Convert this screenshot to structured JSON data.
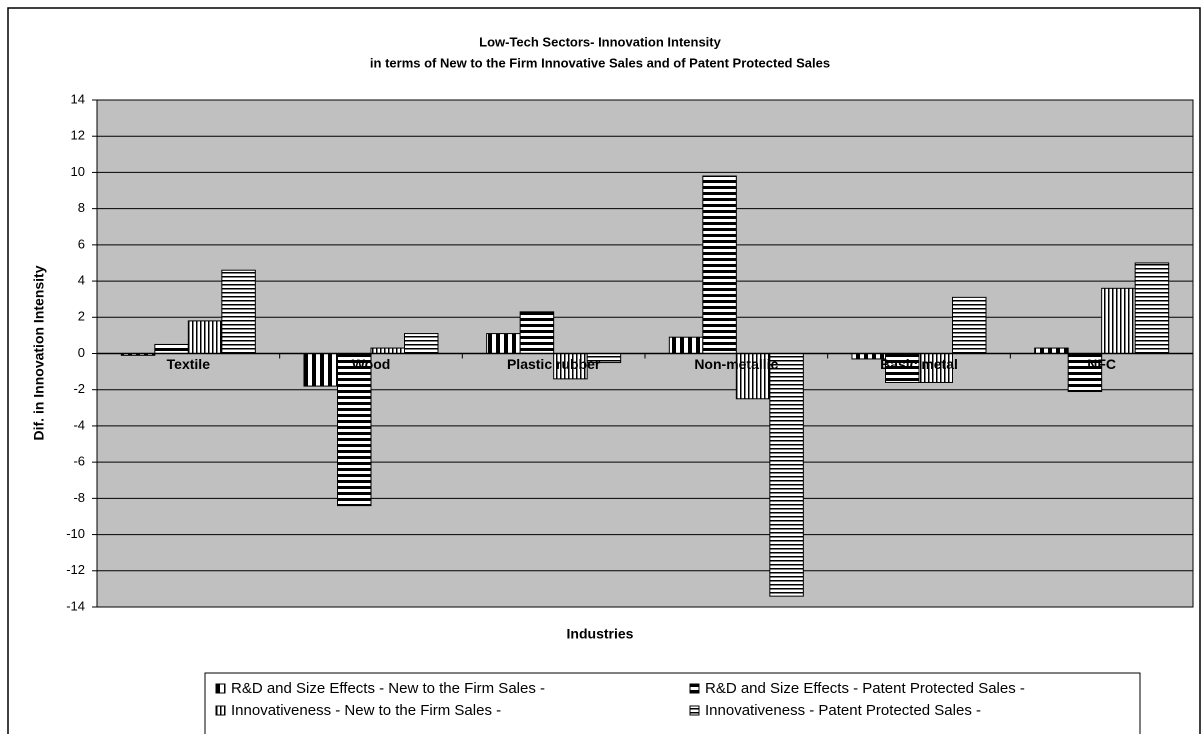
{
  "chart_data": {
    "type": "bar",
    "title": [
      "Low-Tech Sectors- Innovation Intensity",
      "in terms of  New to the Firm  Innovative Sales and of Patent Protected Sales"
    ],
    "x_label": "Industries",
    "y_label": "Dif. in Innovation Intensity",
    "categories": [
      "Textile",
      "Wood",
      "Plastic rubber",
      "Non-metallic",
      "Basic metal",
      "NFC"
    ],
    "series": [
      {
        "name": "R&D and Size Effects - New to the Firm Sales -",
        "color": "#000000",
        "pattern": "vertical-wide",
        "values": [
          -0.1,
          -1.8,
          1.1,
          0.9,
          -0.3,
          0.3
        ]
      },
      {
        "name": "R&D and Size Effects - Patent Protected Sales -",
        "color": "#000000",
        "pattern": "horizontal-wide",
        "values": [
          0.5,
          -8.4,
          2.3,
          9.8,
          -1.6,
          -2.1
        ]
      },
      {
        "name": "Innovativeness - New to the Firm Sales -",
        "color": "#000000",
        "pattern": "vertical-narrow",
        "values": [
          1.8,
          0.3,
          -1.4,
          -2.5,
          -1.6,
          3.6
        ]
      },
      {
        "name": "Innovativeness - Patent Protected Sales -",
        "color": "#000000",
        "pattern": "horizontal-narrow",
        "values": [
          4.6,
          1.1,
          -0.5,
          -13.4,
          3.1,
          5.0
        ]
      }
    ],
    "ylim": [
      -14,
      14
    ],
    "yticks": [
      -14,
      -12,
      -10,
      -8,
      -6,
      -4,
      -2,
      0,
      2,
      4,
      6,
      8,
      10,
      12,
      14
    ],
    "grid": true,
    "legend": "bottom"
  }
}
